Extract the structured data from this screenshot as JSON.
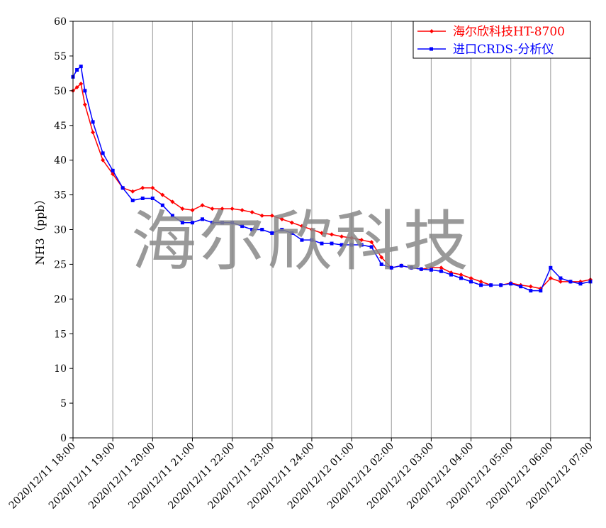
{
  "chart_data": {
    "type": "line",
    "y_label": "NH3（ppb）",
    "watermark": "海尔欣科技",
    "x": [
      0,
      0.1,
      0.2,
      0.3,
      0.5,
      0.75,
      1,
      1.25,
      1.5,
      1.75,
      2,
      2.25,
      2.5,
      2.75,
      3,
      3.25,
      3.5,
      3.75,
      4,
      4.25,
      4.5,
      4.75,
      5,
      5.25,
      5.5,
      5.75,
      6,
      6.25,
      6.5,
      6.75,
      7,
      7.25,
      7.5,
      7.75,
      8,
      8.25,
      8.5,
      8.75,
      9,
      9.25,
      9.5,
      9.75,
      10,
      10.25,
      10.5,
      10.75,
      11,
      11.25,
      11.5,
      11.75,
      12,
      12.25,
      12.5,
      12.75,
      13
    ],
    "series": [
      {
        "name": "海尔欣科技HT-8700",
        "color": "#ff0000",
        "marker": "diamond",
        "values": [
          50,
          50.5,
          51,
          48,
          44,
          40,
          38,
          36,
          35.5,
          36,
          36,
          35,
          34,
          33,
          32.8,
          33.5,
          33,
          33,
          33,
          32.8,
          32.5,
          32,
          32,
          31.5,
          31,
          30.5,
          30,
          29.5,
          29.3,
          29,
          28.8,
          28.5,
          28.2,
          26,
          24.5,
          24.8,
          24.5,
          24.3,
          24.5,
          24.5,
          23.8,
          23.5,
          23,
          22.5,
          22,
          22,
          22.3,
          22,
          21.8,
          21.5,
          23,
          22.5,
          22.5,
          22.5,
          22.8
        ]
      },
      {
        "name": "进口CRDS-分析仪",
        "color": "#0000ff",
        "marker": "square",
        "values": [
          52,
          53,
          53.5,
          50,
          45.5,
          41,
          38.5,
          36,
          34.2,
          34.5,
          34.5,
          33.5,
          32,
          31,
          31,
          31.5,
          31,
          31,
          31,
          30.5,
          30,
          30,
          29.5,
          30,
          29.5,
          28.5,
          28.5,
          28,
          28,
          27.8,
          27.8,
          27.8,
          27.5,
          25,
          24.5,
          24.8,
          24.5,
          24.3,
          24.2,
          24,
          23.5,
          23,
          22.5,
          22,
          22,
          22,
          22.2,
          21.8,
          21.2,
          21.2,
          24.5,
          23,
          22.5,
          22.2,
          22.5
        ]
      }
    ],
    "xlim": [
      0,
      13
    ],
    "xticks": [
      {
        "value": 0,
        "label": "2020/12/11 18:00"
      },
      {
        "value": 1,
        "label": "2020/12/11 19:00"
      },
      {
        "value": 2,
        "label": "2020/12/11 20:00"
      },
      {
        "value": 3,
        "label": "2020/12/11 21:00"
      },
      {
        "value": 4,
        "label": "2020/12/11 22:00"
      },
      {
        "value": 5,
        "label": "2020/12/11 23:00"
      },
      {
        "value": 6,
        "label": "2020/12/11 24:00"
      },
      {
        "value": 7,
        "label": "2020/12/12 01:00"
      },
      {
        "value": 8,
        "label": "2020/12/12 02:00"
      },
      {
        "value": 9,
        "label": "2020/12/12 03:00"
      },
      {
        "value": 10,
        "label": "2020/12/12 04:00"
      },
      {
        "value": 11,
        "label": "2020/12/12 05:00"
      },
      {
        "value": 12,
        "label": "2020/12/12 06:00"
      },
      {
        "value": 13,
        "label": "2020/12/12 07:00"
      }
    ],
    "ylim": [
      0,
      60
    ],
    "yticks": [
      0,
      5,
      10,
      15,
      20,
      25,
      30,
      35,
      40,
      45,
      50,
      55,
      60
    ],
    "grid": true,
    "legend": "top-right"
  }
}
